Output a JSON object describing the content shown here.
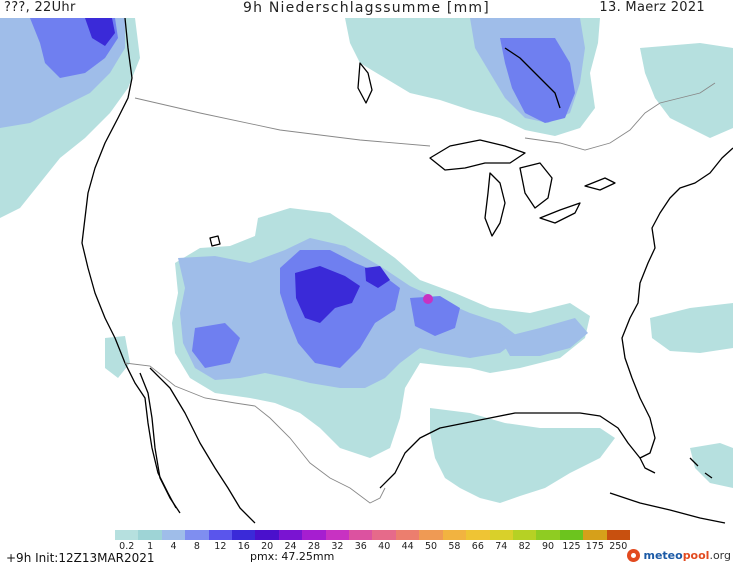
{
  "header": {
    "left": "???, 22Uhr",
    "center": "9h Niederschlagssumme [mm]",
    "right": "13. Maerz 2021"
  },
  "legend": {
    "labels": [
      "0.2",
      "1",
      "4",
      "8",
      "12",
      "16",
      "20",
      "24",
      "28",
      "32",
      "36",
      "40",
      "44",
      "50",
      "58",
      "66",
      "74",
      "82",
      "90",
      "125",
      "175",
      "250"
    ],
    "colors": [
      "#b6e0df",
      "#9ed4d6",
      "#9fbde9",
      "#7f8ef0",
      "#5a55ec",
      "#3a2ad8",
      "#4a10cc",
      "#7a14d2",
      "#a61ed0",
      "#c832c2",
      "#dc52a0",
      "#e66a8a",
      "#ec7e6e",
      "#ef9a54",
      "#f2b340",
      "#efc434",
      "#d9d02a",
      "#b6d124",
      "#8fcc22",
      "#6cc41e",
      "#d6a01a",
      "#c8500f"
    ]
  },
  "footer": {
    "init": "+9h Init:12Z13MAR2021",
    "pmx": "pmx: 47.25mm",
    "logo": {
      "part1": "meteo",
      "part2": "pool",
      "part3": ".org"
    }
  },
  "map": {
    "colors": {
      "light_precip": "#b6e0df",
      "mid_precip": "#9fbde9",
      "heavy_precip": "#6f7ff0",
      "max_precip": "#3a2ad8",
      "peak": "#c832c2",
      "coastline": "#000000",
      "border": "#888888"
    }
  }
}
